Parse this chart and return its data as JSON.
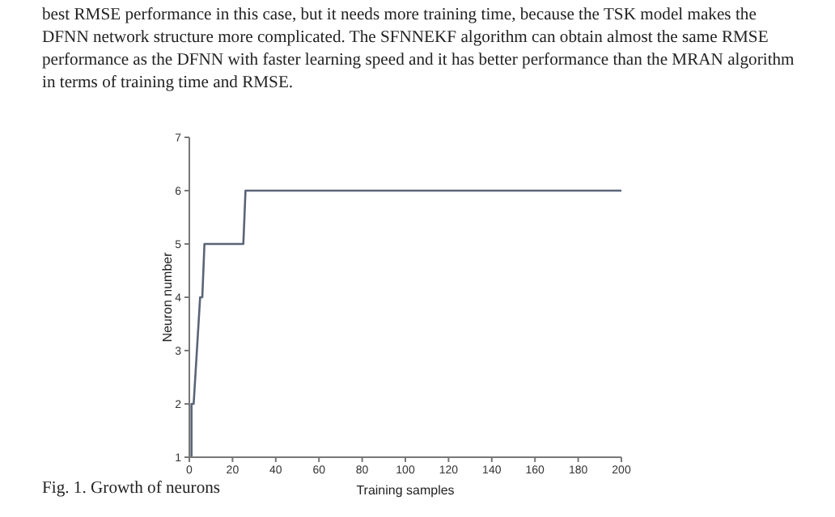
{
  "chart_data": {
    "type": "line",
    "xlabel": "Training samples",
    "ylabel": "Neuron number",
    "annotations": [
      "best RMSE performance in this case, but it needs more training time, because the TSK model makes the DFNN network structure more complicated. The SFNNEKF algorithm can obtain almost the same RMSE performance as the DFNN with faster learning speed and it has better performance than the MRAN algorithm in terms of training time and RMSE.",
      "Fig. 1. Growth of neurons"
    ],
    "x": [
      0,
      1,
      1,
      2,
      5,
      6,
      7,
      25,
      26,
      200
    ],
    "series": [
      {
        "color": "#5a6478",
        "values": [
          1,
          1,
          2,
          2,
          4,
          4,
          5,
          5,
          6,
          6
        ]
      }
    ],
    "xlim": [
      0,
      200
    ],
    "xticks": [
      0,
      20,
      40,
      60,
      80,
      100,
      120,
      140,
      160,
      180,
      200
    ],
    "ylim": [
      1,
      7
    ],
    "yticks": [
      1,
      2,
      3,
      4,
      5,
      6,
      7
    ],
    "grid": false,
    "legend": false,
    "marker": "none",
    "line_style": "solid"
  }
}
